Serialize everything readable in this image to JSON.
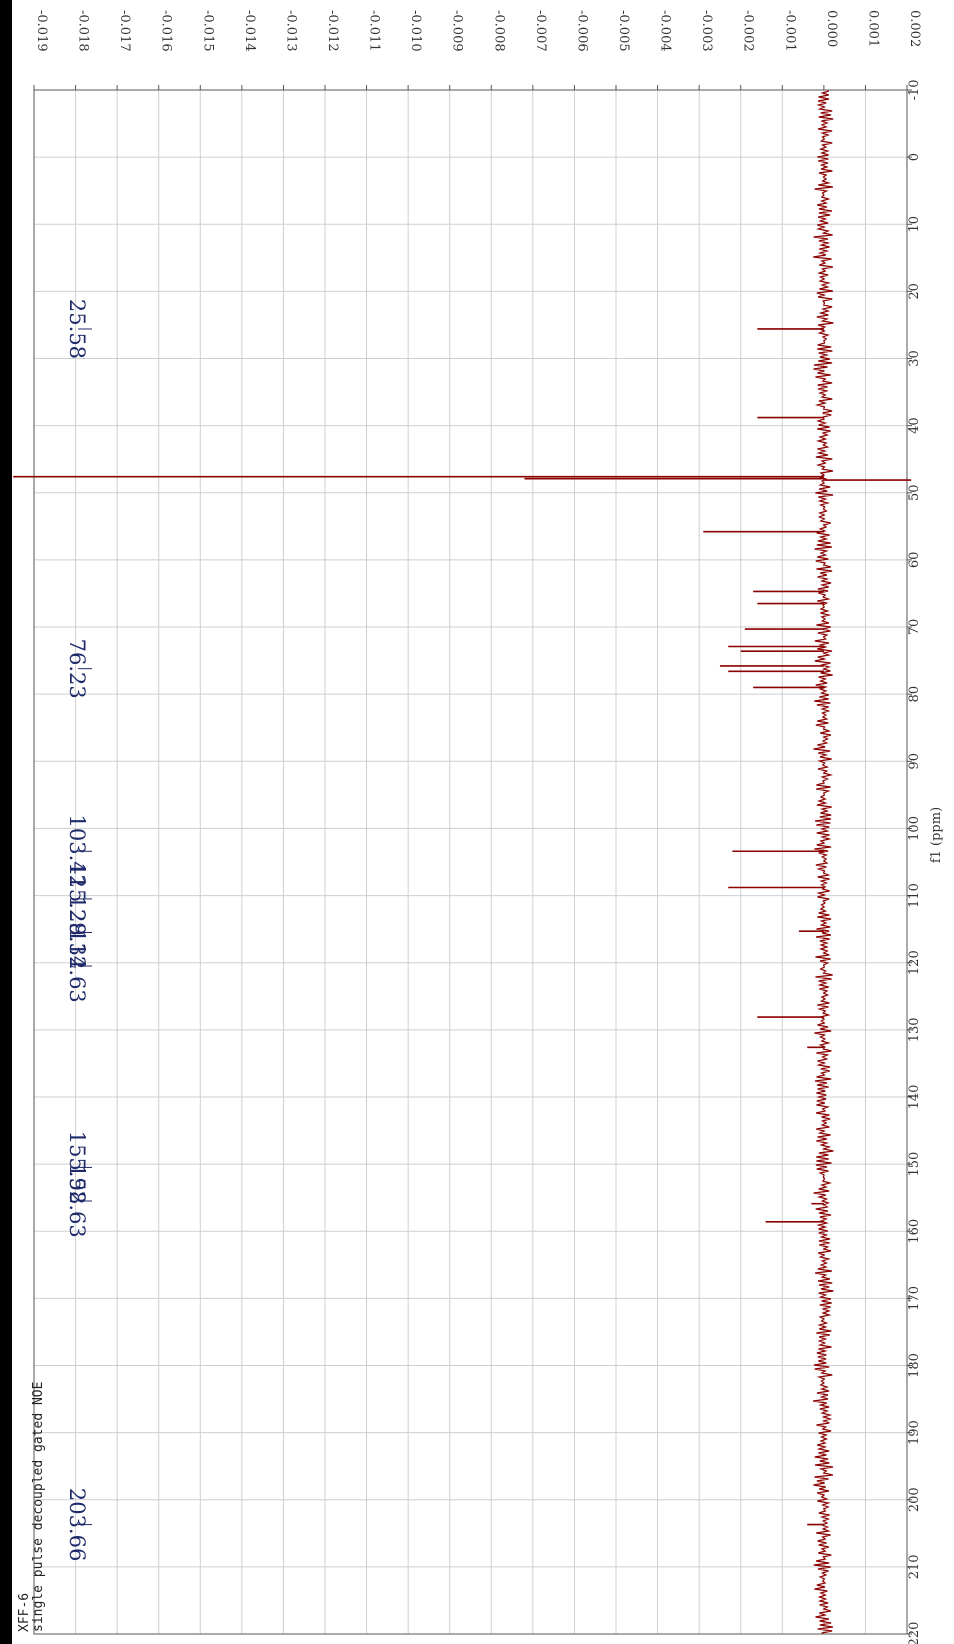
{
  "chart_data": {
    "type": "line",
    "orientation": "rotated-90",
    "title": "",
    "xlabel": "f1 (ppm)",
    "ylabel": "",
    "xlim": [
      -10,
      220
    ],
    "ylim": [
      -0.019,
      0.002
    ],
    "grid": true,
    "line_color": "#8b0000",
    "text_color": "#1f2a6b",
    "x_ticks": [
      "-10",
      "0",
      "10",
      "20",
      "30",
      "40",
      "50",
      "60",
      "70",
      "80",
      "90",
      "100",
      "110",
      "120",
      "130",
      "140",
      "150",
      "160",
      "170",
      "180",
      "190",
      "200",
      "210",
      "220"
    ],
    "y_ticks": [
      "-0.019",
      "-0.018",
      "-0.017",
      "-0.016",
      "-0.015",
      "-0.014",
      "-0.013",
      "-0.012",
      "-0.011",
      "-0.010",
      "-0.009",
      "-0.008",
      "-0.007",
      "-0.006",
      "-0.005",
      "-0.004",
      "-0.003",
      "-0.002",
      "-0.001",
      "0.000",
      "0.001",
      "0.002"
    ],
    "peak_labels": [
      "25.58",
      "76.23",
      "103.42",
      "115.29",
      "128.14",
      "132.63",
      "155.92",
      "158.63",
      "203.66"
    ],
    "peaks": [
      {
        "ppm": 25.6,
        "intensity": -0.0016
      },
      {
        "ppm": 38.8,
        "intensity": -0.0016
      },
      {
        "ppm": 47.6,
        "intensity": -0.0195
      },
      {
        "ppm": 47.9,
        "intensity": -0.0072
      },
      {
        "ppm": 48.1,
        "intensity": 0.0021
      },
      {
        "ppm": 55.8,
        "intensity": -0.0029
      },
      {
        "ppm": 64.7,
        "intensity": -0.0017
      },
      {
        "ppm": 66.5,
        "intensity": -0.0016
      },
      {
        "ppm": 70.3,
        "intensity": -0.0019
      },
      {
        "ppm": 72.9,
        "intensity": -0.0023
      },
      {
        "ppm": 73.6,
        "intensity": -0.002
      },
      {
        "ppm": 75.8,
        "intensity": -0.0025
      },
      {
        "ppm": 76.6,
        "intensity": -0.0023
      },
      {
        "ppm": 79.0,
        "intensity": -0.0017
      },
      {
        "ppm": 103.4,
        "intensity": -0.0022
      },
      {
        "ppm": 108.8,
        "intensity": -0.0023
      },
      {
        "ppm": 115.3,
        "intensity": -0.0006
      },
      {
        "ppm": 128.1,
        "intensity": -0.0016
      },
      {
        "ppm": 132.6,
        "intensity": -0.0004
      },
      {
        "ppm": 155.9,
        "intensity": -0.0003
      },
      {
        "ppm": 158.6,
        "intensity": -0.0014
      },
      {
        "ppm": 203.7,
        "intensity": -0.0004
      }
    ],
    "annotations": [
      "XFF-6",
      "single pulse decoupled gated NOE"
    ]
  }
}
